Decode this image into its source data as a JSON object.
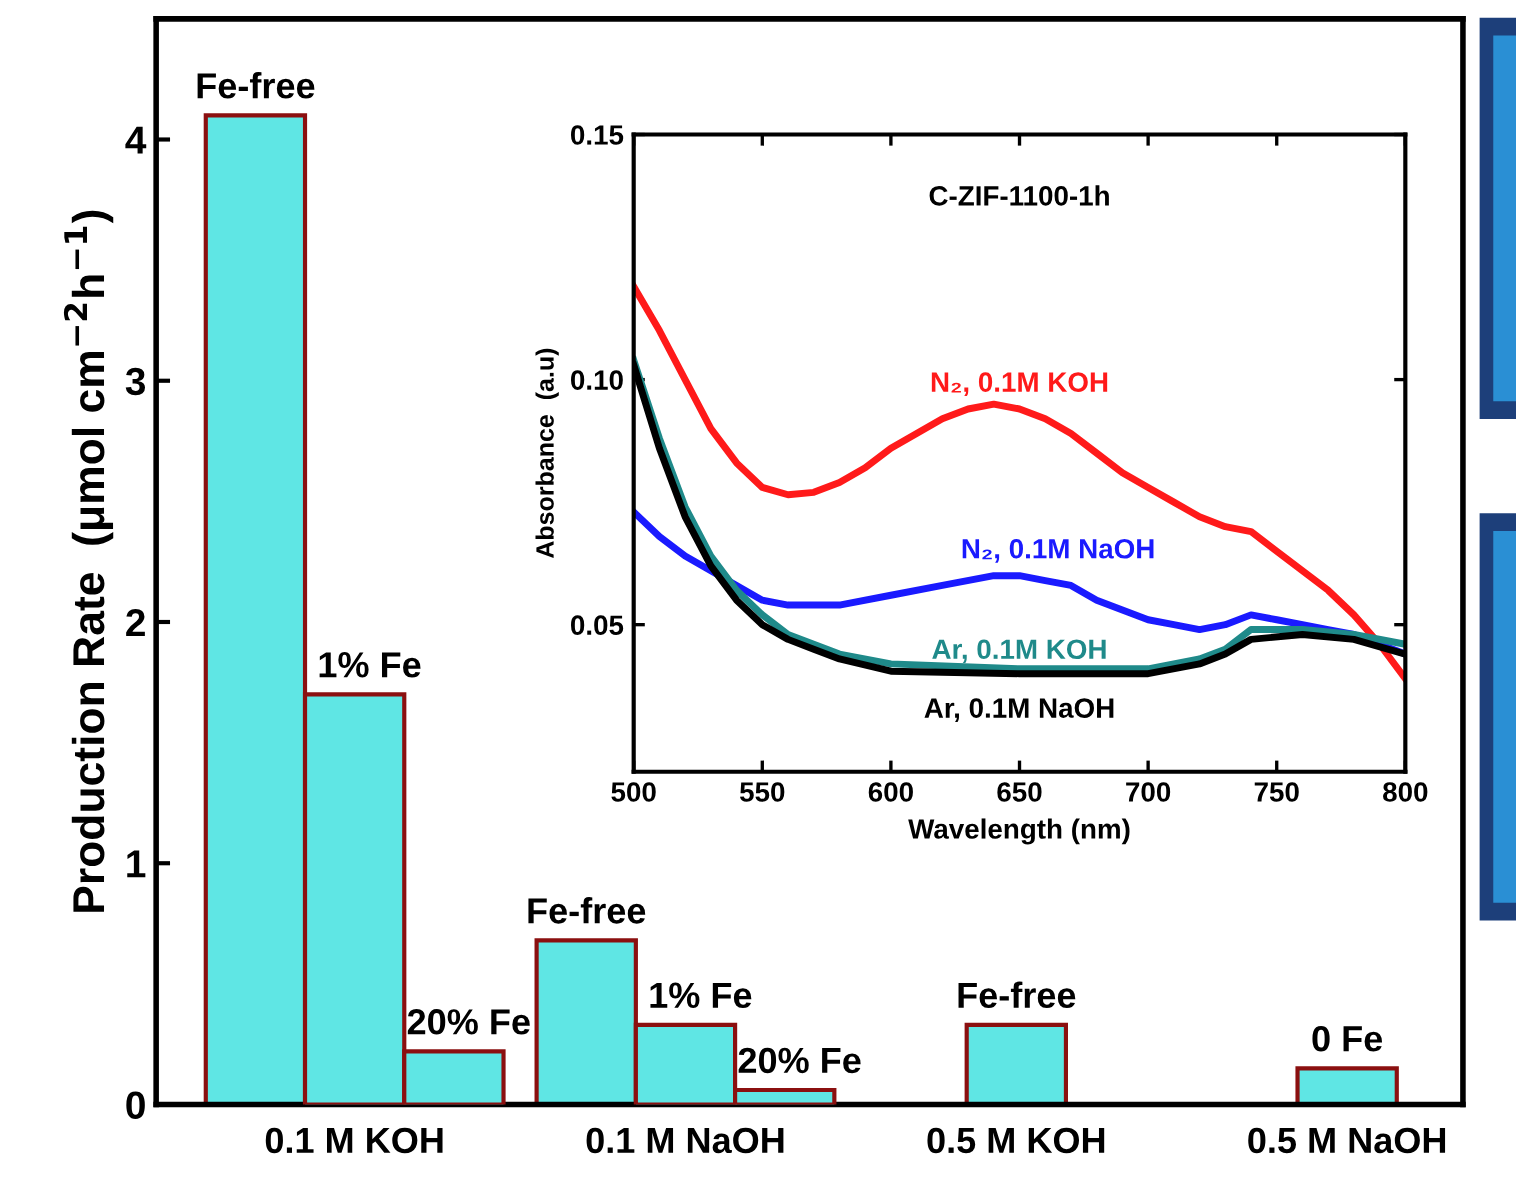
{
  "chart_data": [
    {
      "type": "bar",
      "ylabel": "Production Rate  (μmol cm$^{−2}$h$^{−1}$)",
      "categories": [
        "0.1 M KOH",
        "0.1 M NaOH",
        "0.5 M KOH",
        "0.5 M NaOH"
      ],
      "ylim": [
        0,
        4.5
      ],
      "yticks": [
        0,
        1,
        2,
        3,
        4
      ],
      "series": [
        {
          "name": "Fe-free",
          "color": "#5fe6e4",
          "values": [
            4.1,
            0.68,
            0.33,
            null
          ]
        },
        {
          "name": "1% Fe",
          "color": "#5fe6e4",
          "values": [
            1.7,
            0.33,
            null,
            null
          ]
        },
        {
          "name": "20% Fe",
          "color": "#5fe6e4",
          "values": [
            0.22,
            0.06,
            null,
            null
          ]
        },
        {
          "name": "0 Fe",
          "color": "#5fe6e4",
          "values": [
            null,
            null,
            null,
            0.15
          ]
        }
      ]
    },
    {
      "type": "line",
      "xlabel": "Wavelength (nm)",
      "ylabel": "Absorbance  (a.u)",
      "annotations": [
        "C-ZIF-1100-1h"
      ],
      "xlim": [
        500,
        800
      ],
      "xticks": [
        500,
        550,
        600,
        650,
        700,
        750,
        800
      ],
      "ylim": [
        0.02,
        0.15
      ],
      "yticks": [
        0.05,
        {
          "value": 0.1,
          "label": "0.10"
        },
        0.15
      ],
      "series": [
        {
          "name": "N₂, 0.1M KOH",
          "color": "#ff1a1a",
          "x": [
            500,
            510,
            520,
            530,
            540,
            550,
            560,
            570,
            580,
            590,
            600,
            610,
            620,
            630,
            640,
            650,
            660,
            670,
            680,
            690,
            700,
            710,
            720,
            730,
            740,
            750,
            760,
            770,
            780,
            790,
            800
          ],
          "values": [
            0.119,
            0.11,
            0.1,
            0.09,
            0.083,
            0.078,
            0.0765,
            0.077,
            0.079,
            0.082,
            0.086,
            0.089,
            0.092,
            0.094,
            0.095,
            0.094,
            0.092,
            0.089,
            0.085,
            0.081,
            0.078,
            0.075,
            0.072,
            0.07,
            0.069,
            0.065,
            0.061,
            0.057,
            0.052,
            0.046,
            0.039
          ]
        },
        {
          "name": "N₂, 0.1M NaOH",
          "color": "#1a1aff",
          "x": [
            500,
            510,
            520,
            530,
            540,
            550,
            560,
            580,
            600,
            620,
            640,
            650,
            660,
            670,
            680,
            690,
            700,
            710,
            720,
            730,
            740,
            750,
            760,
            770,
            780,
            790,
            800
          ],
          "values": [
            0.073,
            0.068,
            0.064,
            0.061,
            0.058,
            0.055,
            0.054,
            0.054,
            0.056,
            0.058,
            0.06,
            0.06,
            0.059,
            0.058,
            0.055,
            0.053,
            0.051,
            0.05,
            0.049,
            0.05,
            0.052,
            0.051,
            0.05,
            0.049,
            0.048,
            0.046,
            0.044
          ]
        },
        {
          "name": "Ar, 0.1M KOH",
          "color": "#1f8a8a",
          "x": [
            500,
            510,
            520,
            530,
            540,
            550,
            560,
            570,
            580,
            600,
            650,
            700,
            720,
            730,
            740,
            760,
            780,
            800
          ],
          "values": [
            0.104,
            0.088,
            0.074,
            0.064,
            0.057,
            0.052,
            0.048,
            0.046,
            0.044,
            0.042,
            0.041,
            0.041,
            0.043,
            0.045,
            0.049,
            0.049,
            0.048,
            0.046
          ]
        },
        {
          "name": "Ar, 0.1M NaOH",
          "color": "#000000",
          "x": [
            500,
            510,
            520,
            530,
            540,
            550,
            560,
            570,
            580,
            600,
            650,
            700,
            720,
            730,
            740,
            760,
            780,
            800
          ],
          "values": [
            0.103,
            0.086,
            0.072,
            0.062,
            0.055,
            0.05,
            0.047,
            0.045,
            0.043,
            0.0405,
            0.04,
            0.04,
            0.042,
            0.044,
            0.047,
            0.048,
            0.047,
            0.044
          ]
        }
      ]
    }
  ]
}
